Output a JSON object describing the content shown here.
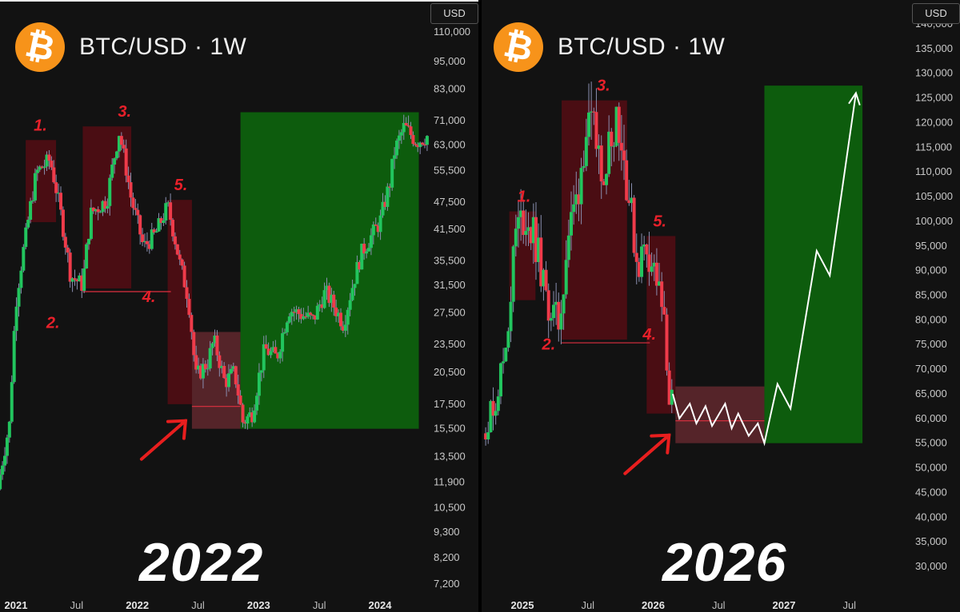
{
  "chart_data": [
    {
      "type": "candlestick",
      "header": "BTC/USD · 1W",
      "currency_button": "USD",
      "year_caption": "2022",
      "ylim": [
        6800,
        120000
      ],
      "yscale": "log",
      "y_ticks": [
        "110,000",
        "95,000",
        "83,000",
        "71,000",
        "63,000",
        "55,500",
        "47,500",
        "41,500",
        "35,500",
        "31,500",
        "27,500",
        "23,500",
        "20,500",
        "17,500",
        "15,500",
        "13,500",
        "11,900",
        "10,500",
        "9,300",
        "8,200",
        "7,200"
      ],
      "x_ticks": [
        "2021",
        "Jul",
        "2022",
        "Jul",
        "2023",
        "Jul",
        "2024"
      ],
      "price_path": [
        [
          2020.85,
          11500
        ],
        [
          2020.95,
          16000
        ],
        [
          2021.0,
          29000
        ],
        [
          2021.08,
          40000
        ],
        [
          2021.17,
          55000
        ],
        [
          2021.28,
          58500
        ],
        [
          2021.4,
          40000
        ],
        [
          2021.45,
          33000
        ],
        [
          2021.55,
          31500
        ],
        [
          2021.62,
          45000
        ],
        [
          2021.75,
          48000
        ],
        [
          2021.85,
          67000
        ],
        [
          2021.95,
          48000
        ],
        [
          2022.05,
          38000
        ],
        [
          2022.15,
          40500
        ],
        [
          2022.25,
          46500
        ],
        [
          2022.35,
          35000
        ],
        [
          2022.42,
          29500
        ],
        [
          2022.48,
          20000
        ],
        [
          2022.58,
          21500
        ],
        [
          2022.63,
          24000
        ],
        [
          2022.72,
          19500
        ],
        [
          2022.8,
          20500
        ],
        [
          2022.87,
          16000
        ],
        [
          2022.95,
          16800
        ],
        [
          2023.05,
          23000
        ],
        [
          2023.15,
          22000
        ],
        [
          2023.25,
          28000
        ],
        [
          2023.45,
          26500
        ],
        [
          2023.55,
          30500
        ],
        [
          2023.7,
          26000
        ],
        [
          2023.85,
          37000
        ],
        [
          2024.0,
          43000
        ],
        [
          2024.08,
          52000
        ],
        [
          2024.12,
          61000
        ],
        [
          2024.2,
          69000
        ],
        [
          2024.3,
          64000
        ],
        [
          2024.4,
          66000
        ]
      ],
      "zones": [
        {
          "label": "1.",
          "x0": 2021.08,
          "x1": 2021.33,
          "low": 43000,
          "high": 64500
        },
        {
          "label": "3.",
          "x0": 2021.55,
          "x1": 2021.95,
          "low": 31000,
          "high": 69000
        },
        {
          "label": "5.",
          "x0": 2022.25,
          "x1": 2022.45,
          "low": 17500,
          "high": 48000
        },
        {
          "label": "",
          "x0": 2022.45,
          "x1": 2022.85,
          "low": 15500,
          "high": 25000
        },
        {
          "label": "",
          "x0": 2022.85,
          "x1": 2024.32,
          "low": 15500,
          "high": 74000
        }
      ],
      "markers": [
        {
          "label": "2.",
          "x": 2021.25,
          "y": 25500
        },
        {
          "label": "4.",
          "x": 2022.04,
          "y": 29000
        }
      ]
    },
    {
      "type": "candlestick",
      "header": "BTC/USD · 1W",
      "currency_button": "USD",
      "year_caption": "2026",
      "ylim": [
        25000,
        141000
      ],
      "yscale": "linear",
      "y_ticks": [
        "140,000",
        "135,000",
        "130,000",
        "125,000",
        "120,000",
        "115,000",
        "110,000",
        "105,000",
        "100,000",
        "95,000",
        "90,000",
        "85,000",
        "80,000",
        "75,000",
        "70,000",
        "65,000",
        "60,000",
        "55,000",
        "50,000",
        "45,000",
        "40,000",
        "35,000",
        "30,000"
      ],
      "x_ticks": [
        "2025",
        "Jul",
        "2026",
        "Jul",
        "2027",
        "Jul"
      ],
      "price_path": [
        [
          2024.7,
          57000
        ],
        [
          2024.8,
          64000
        ],
        [
          2024.88,
          76000
        ],
        [
          2024.95,
          98000
        ],
        [
          2025.02,
          101000
        ],
        [
          2025.1,
          96000
        ],
        [
          2025.18,
          84000
        ],
        [
          2025.28,
          79000
        ],
        [
          2025.35,
          97000
        ],
        [
          2025.42,
          105000
        ],
        [
          2025.48,
          118000
        ],
        [
          2025.55,
          117000
        ],
        [
          2025.63,
          111000
        ],
        [
          2025.72,
          123000
        ],
        [
          2025.8,
          108000
        ],
        [
          2025.88,
          91000
        ],
        [
          2025.95,
          95000
        ],
        [
          2026.02,
          89000
        ],
        [
          2026.08,
          80000
        ],
        [
          2026.12,
          65000
        ],
        [
          2026.15,
          63000
        ]
      ],
      "projection": [
        [
          2026.15,
          65000
        ],
        [
          2026.2,
          60000
        ],
        [
          2026.28,
          63000
        ],
        [
          2026.33,
          59000
        ],
        [
          2026.4,
          62500
        ],
        [
          2026.45,
          58500
        ],
        [
          2026.55,
          63000
        ],
        [
          2026.6,
          58000
        ],
        [
          2026.65,
          61000
        ],
        [
          2026.73,
          56500
        ],
        [
          2026.8,
          59000
        ],
        [
          2026.85,
          55000
        ],
        [
          2026.95,
          67000
        ],
        [
          2027.05,
          62000
        ],
        [
          2027.25,
          94000
        ],
        [
          2027.35,
          89000
        ],
        [
          2027.55,
          126000
        ]
      ],
      "zones": [
        {
          "label": "1.",
          "x0": 2024.9,
          "x1": 2025.1,
          "low": 84000,
          "high": 102000
        },
        {
          "label": "3.",
          "x0": 2025.3,
          "x1": 2025.8,
          "low": 76000,
          "high": 124500
        },
        {
          "label": "5.",
          "x0": 2025.95,
          "x1": 2026.17,
          "low": 61000,
          "high": 97000
        },
        {
          "label": "",
          "x0": 2026.17,
          "x1": 2026.85,
          "low": 55000,
          "high": 66500
        },
        {
          "label": "",
          "x0": 2026.85,
          "x1": 2027.6,
          "low": 55000,
          "high": 127500
        }
      ],
      "markers": [
        {
          "label": "2.",
          "x": 2025.15,
          "y": 74000
        },
        {
          "label": "4.",
          "x": 2025.92,
          "y": 76000
        }
      ]
    }
  ]
}
